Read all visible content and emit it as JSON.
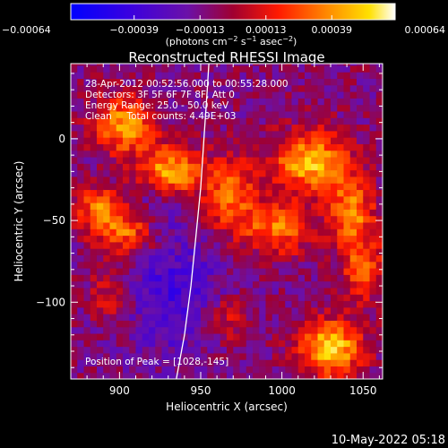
{
  "chart_data": {
    "type": "heatmap",
    "title": "Reconstructed RHESSI Image",
    "xlabel": "Heliocentric X (arcsec)",
    "ylabel": "Heliocentric Y (arcsec)",
    "xlim": [
      870,
      1062
    ],
    "ylim": [
      -147,
      46
    ],
    "x_ticks": [
      900,
      950,
      1000,
      1050
    ],
    "y_ticks": [
      0,
      -50,
      -100
    ],
    "x_tick_labels": [
      "900",
      "950",
      "1000",
      "1050"
    ],
    "y_tick_labels": [
      "0",
      "−50",
      "−100"
    ],
    "colorbar": {
      "range": [
        -0.00064,
        0.00064
      ],
      "tick_values": [
        -0.00064,
        -0.00039,
        -0.00013,
        0.00013,
        0.00039,
        0.00064
      ],
      "tick_labels": [
        "−0.00064",
        "−0.00039",
        "−0.00013",
        "0.00013",
        "0.00039",
        "0.00064"
      ],
      "unit_main": "(photons cm",
      "unit_sup1": "−2",
      "unit_mid": " s",
      "unit_sup2": "−1",
      "unit_mid2": " asec",
      "unit_sup3": "−2",
      "unit_end": ")"
    },
    "annotations": [
      "28-Apr-2012 00:52:56.000 to 00:55:28.000",
      "Detectors: 3F 5F 6F 7F 8F, Att 0",
      "Energy Range: 25.0 - 50.0 keV",
      "Clean     Total counts: 4.49E+03"
    ],
    "peak_label": "Position of Peak = [1028,-145]",
    "peak": [
      1028,
      -145
    ],
    "limb_curve": [
      [
        935,
        -147
      ],
      [
        940,
        -120
      ],
      [
        944,
        -90
      ],
      [
        947,
        -60
      ],
      [
        950,
        -30
      ],
      [
        952,
        0
      ],
      [
        954,
        30
      ],
      [
        955,
        46
      ]
    ],
    "hot_sources": [
      {
        "x": 903,
        "y": 9,
        "sx": 13,
        "sy": 12,
        "amp": 0.00052
      },
      {
        "x": 931,
        "y": -20,
        "sx": 13,
        "sy": 11,
        "amp": 0.00055
      },
      {
        "x": 888,
        "y": -43,
        "sx": 10,
        "sy": 10,
        "amp": 0.00042
      },
      {
        "x": 905,
        "y": -57,
        "sx": 12,
        "sy": 10,
        "amp": 0.0004
      },
      {
        "x": 968,
        "y": -35,
        "sx": 12,
        "sy": 16,
        "amp": 0.00042
      },
      {
        "x": 998,
        "y": -55,
        "sx": 14,
        "sy": 11,
        "amp": 0.00042
      },
      {
        "x": 1018,
        "y": -14,
        "sx": 16,
        "sy": 13,
        "amp": 0.00058
      },
      {
        "x": 1043,
        "y": -45,
        "sx": 10,
        "sy": 14,
        "amp": 0.00045
      },
      {
        "x": 1050,
        "y": -80,
        "sx": 9,
        "sy": 13,
        "amp": 0.0004
      },
      {
        "x": 1030,
        "y": -128,
        "sx": 13,
        "sy": 12,
        "amp": 0.00066
      },
      {
        "x": 965,
        "y": -110,
        "sx": 10,
        "sy": 10,
        "amp": 0.00025
      },
      {
        "x": 895,
        "y": -95,
        "sx": 9,
        "sy": 12,
        "amp": 0.00022
      }
    ],
    "cold_sources": [
      {
        "x": 935,
        "y": -95,
        "sx": 22,
        "sy": 26,
        "amp": -0.00025
      },
      {
        "x": 925,
        "y": -40,
        "sx": 14,
        "sy": 12,
        "amp": -0.00014
      }
    ]
  },
  "footer": {
    "timestamp": "10-May-2022 05:18"
  },
  "colors": {
    "background": "#000000",
    "foreground": "#ffffff",
    "limb": "#ffffff"
  }
}
